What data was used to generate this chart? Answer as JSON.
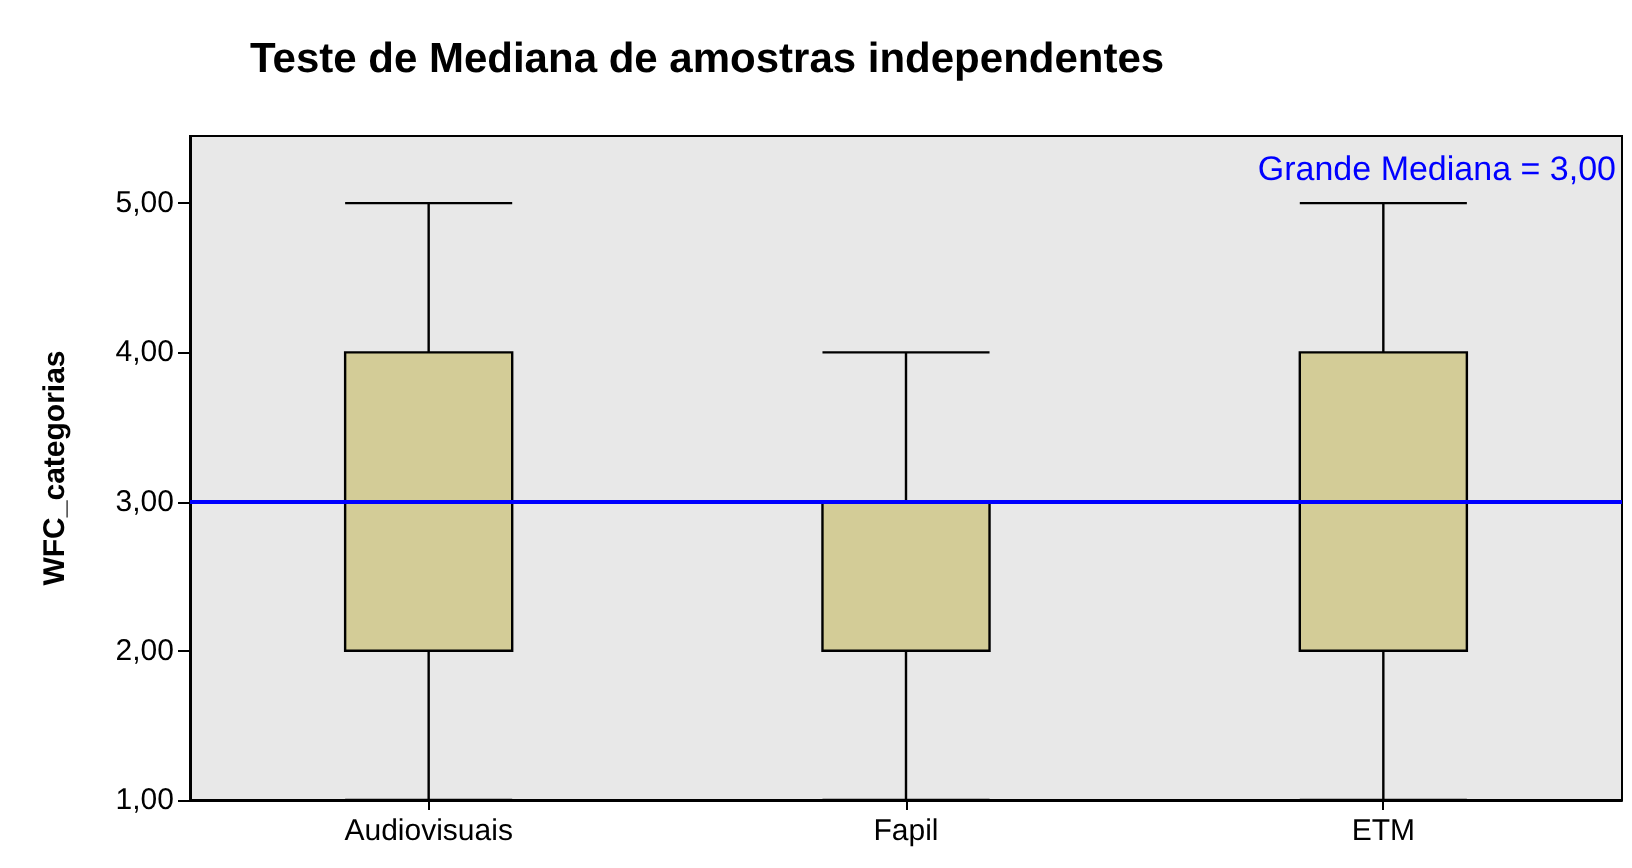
{
  "chart_data": {
    "type": "box",
    "title": "Teste de Mediana de amostras independentes",
    "ylabel": "WFC_categorias",
    "categories": [
      "Audiovisuais",
      "Fapil",
      "ETM"
    ],
    "boxes": [
      {
        "low": 1,
        "q1": 2,
        "median": 3,
        "q3": 4,
        "high": 5
      },
      {
        "low": 1,
        "q1": 2,
        "median": 2,
        "q3": 3,
        "high": 4
      },
      {
        "low": 1,
        "q1": 2,
        "median": 3,
        "q3": 4,
        "high": 5
      }
    ],
    "color": "#d3cc97",
    "ylim": [
      1,
      5.45
    ],
    "yticks": [
      {
        "value": 1,
        "label": "1,00"
      },
      {
        "value": 2,
        "label": "2,00"
      },
      {
        "value": 3,
        "label": "3,00"
      },
      {
        "value": 4,
        "label": "4,00"
      },
      {
        "value": 5,
        "label": "5,00"
      }
    ],
    "ref_lines": [
      {
        "axis": "y",
        "value": 3,
        "label": "Grande Mediana = 3,00",
        "color": "#0000ff"
      }
    ],
    "grid": false
  }
}
